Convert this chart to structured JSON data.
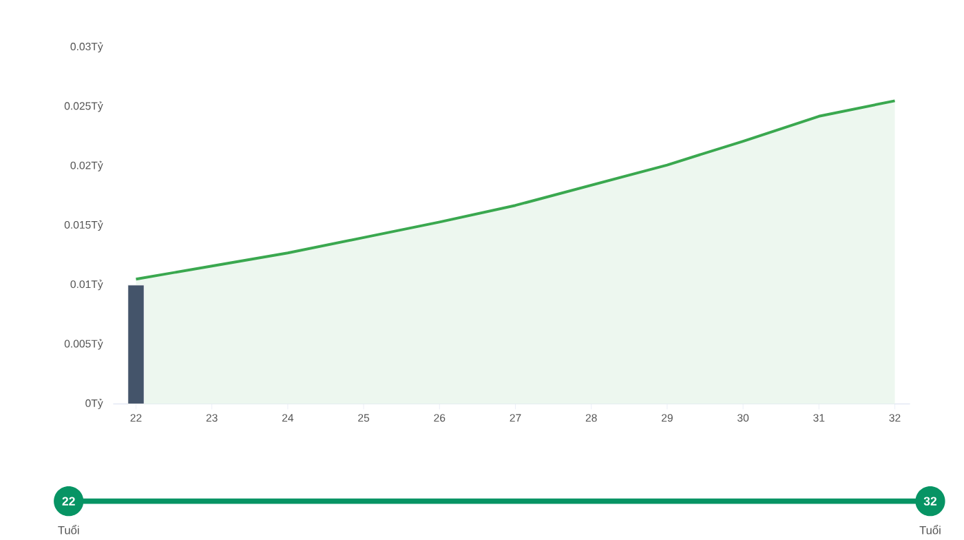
{
  "chart_data": {
    "type": "area",
    "x": [
      22,
      23,
      24,
      25,
      26,
      27,
      28,
      29,
      30,
      31,
      32
    ],
    "series": [
      {
        "type": "bar",
        "x": [
          22
        ],
        "values": [
          0.01
        ],
        "color": "#44546a"
      },
      {
        "values": [
          0.0105,
          0.0116,
          0.0127,
          0.014,
          0.0153,
          0.0167,
          0.0184,
          0.0201,
          0.0221,
          0.0242,
          0.0255
        ],
        "color": "#3aa84f"
      }
    ],
    "xlim": [
      21.7,
      32.2
    ],
    "ylim": [
      0,
      0.03
    ],
    "xticks": [
      22,
      23,
      24,
      25,
      26,
      27,
      28,
      29,
      30,
      31,
      32
    ],
    "yticks": [
      {
        "value": 0,
        "label": "0Tỷ"
      },
      {
        "value": 0.005,
        "label": "0.005Tỷ"
      },
      {
        "value": 0.01,
        "label": "0.01Tỷ"
      },
      {
        "value": 0.015,
        "label": "0.015Tỷ"
      },
      {
        "value": 0.02,
        "label": "0.02Tỷ"
      },
      {
        "value": 0.025,
        "label": "0.025Tỷ"
      },
      {
        "value": 0.03,
        "label": "0.03Tỷ"
      }
    ],
    "annotations": [
      "22",
      "Tuổi",
      "32",
      "Tuổi"
    ]
  }
}
